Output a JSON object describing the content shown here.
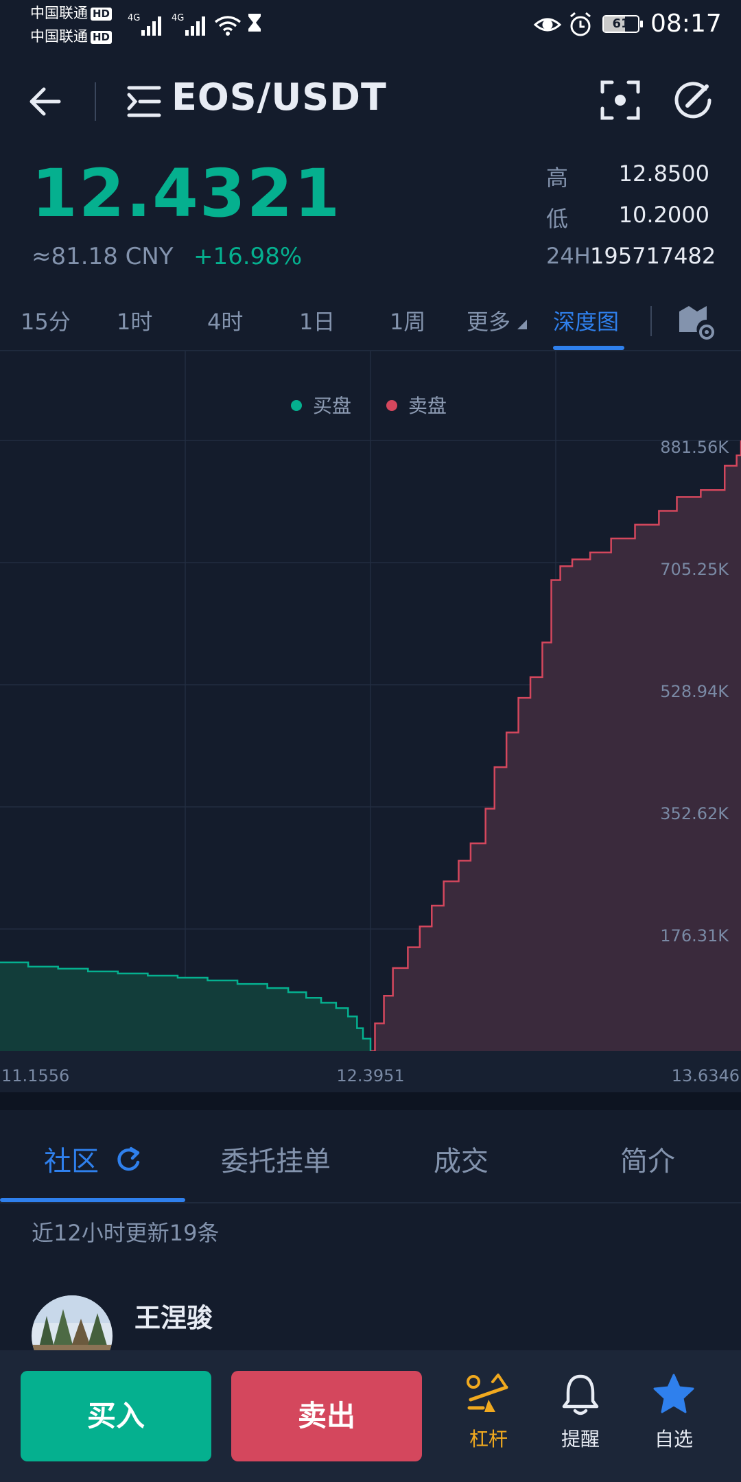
{
  "status_bar": {
    "carrier1": "中国联通",
    "carrier2": "中国联通",
    "hd_badge": "HD",
    "net1": "4G",
    "net2": "4G",
    "battery": "61",
    "time": "08:17"
  },
  "header": {
    "pair": "EOS/USDT"
  },
  "ticker": {
    "price": "12.4321",
    "cny": "≈81.18 CNY",
    "change": "+16.98%",
    "high_label": "高",
    "high_value": "12.8500",
    "low_label": "低",
    "low_value": "10.2000",
    "volume_label": "24H",
    "volume_value": "195717482"
  },
  "interval_tabs": {
    "t15m": "15分",
    "t1h": "1时",
    "t4h": "4时",
    "t1d": "1日",
    "t1w": "1周",
    "more": "更多",
    "depth": "深度图"
  },
  "colors": {
    "buy": "#05b08f",
    "sell": "#d4475d",
    "accent": "#2f80ed",
    "bg": "#141c2c"
  },
  "chart_data": {
    "type": "area",
    "legend": [
      "买盘",
      "卖盘"
    ],
    "x_ticks": [
      "11.1556",
      "12.3951",
      "13.6346"
    ],
    "y_ticks": [
      "176.31K",
      "352.62K",
      "528.94K",
      "705.25K",
      "881.56K"
    ],
    "xlim": [
      11.1556,
      13.6346
    ],
    "ylim": [
      0,
      881560
    ],
    "grid": true,
    "legend_position": "top-center",
    "series": [
      {
        "name": "买盘",
        "side": "buy",
        "x": [
          11.1556,
          11.25,
          11.35,
          11.45,
          11.55,
          11.65,
          11.75,
          11.85,
          11.95,
          12.05,
          12.12,
          12.18,
          12.23,
          12.28,
          12.32,
          12.35,
          12.37,
          12.3951
        ],
        "y": [
          128000,
          122000,
          119000,
          115000,
          112000,
          109000,
          106000,
          102000,
          97000,
          91000,
          85000,
          77000,
          70000,
          62000,
          50000,
          33000,
          18000,
          0
        ]
      },
      {
        "name": "卖盘",
        "side": "sell",
        "x": [
          12.3951,
          12.41,
          12.44,
          12.47,
          12.52,
          12.56,
          12.6,
          12.64,
          12.69,
          12.73,
          12.78,
          12.81,
          12.85,
          12.89,
          12.93,
          12.97,
          13.0,
          13.03,
          13.07,
          13.13,
          13.2,
          13.28,
          13.36,
          13.42,
          13.5,
          13.58,
          13.62,
          13.6346
        ],
        "y": [
          0,
          40000,
          80000,
          120000,
          150000,
          180000,
          210000,
          245000,
          275000,
          300000,
          350000,
          410000,
          460000,
          510000,
          540000,
          590000,
          680000,
          700000,
          710000,
          720000,
          740000,
          760000,
          780000,
          800000,
          810000,
          845000,
          860000,
          881560
        ]
      }
    ]
  },
  "bottom_tabs": {
    "community": "社区",
    "orders": "委托挂单",
    "trades": "成交",
    "intro": "简介"
  },
  "feed": {
    "update_note": "近12小时更新19条",
    "username": "王涅骏"
  },
  "action_bar": {
    "buy": "买入",
    "sell": "卖出",
    "leverage": "杠杆",
    "alert": "提醒",
    "favorite": "自选"
  }
}
